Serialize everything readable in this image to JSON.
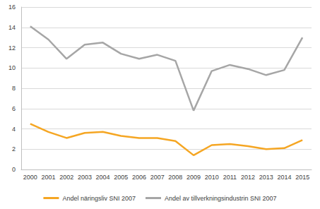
{
  "chart_data": {
    "type": "line",
    "categories": [
      "2000",
      "2001",
      "2002",
      "2003",
      "2004",
      "2005",
      "2006",
      "2007",
      "2008",
      "2009",
      "2010",
      "2011",
      "2012",
      "2013",
      "2014",
      "2015"
    ],
    "series": [
      {
        "name": "Andel näringsliv SNI 2007",
        "color": "#f5a623",
        "values": [
          4.5,
          3.7,
          3.1,
          3.6,
          3.7,
          3.3,
          3.1,
          3.1,
          2.8,
          1.4,
          2.4,
          2.5,
          2.3,
          2.0,
          2.1,
          2.9
        ]
      },
      {
        "name": "Andel av tillverkningsindustrin SNI 2007",
        "color": "#a6a6a6",
        "values": [
          14.1,
          12.8,
          10.9,
          12.3,
          12.5,
          11.4,
          10.9,
          11.3,
          10.7,
          5.8,
          9.7,
          10.3,
          9.9,
          9.3,
          9.8,
          13.0
        ]
      }
    ],
    "ylim": [
      0,
      16
    ],
    "yticks": [
      0,
      2,
      4,
      6,
      8,
      10,
      12,
      14,
      16
    ],
    "grid": true,
    "legend": "bottom",
    "marker": "none"
  }
}
